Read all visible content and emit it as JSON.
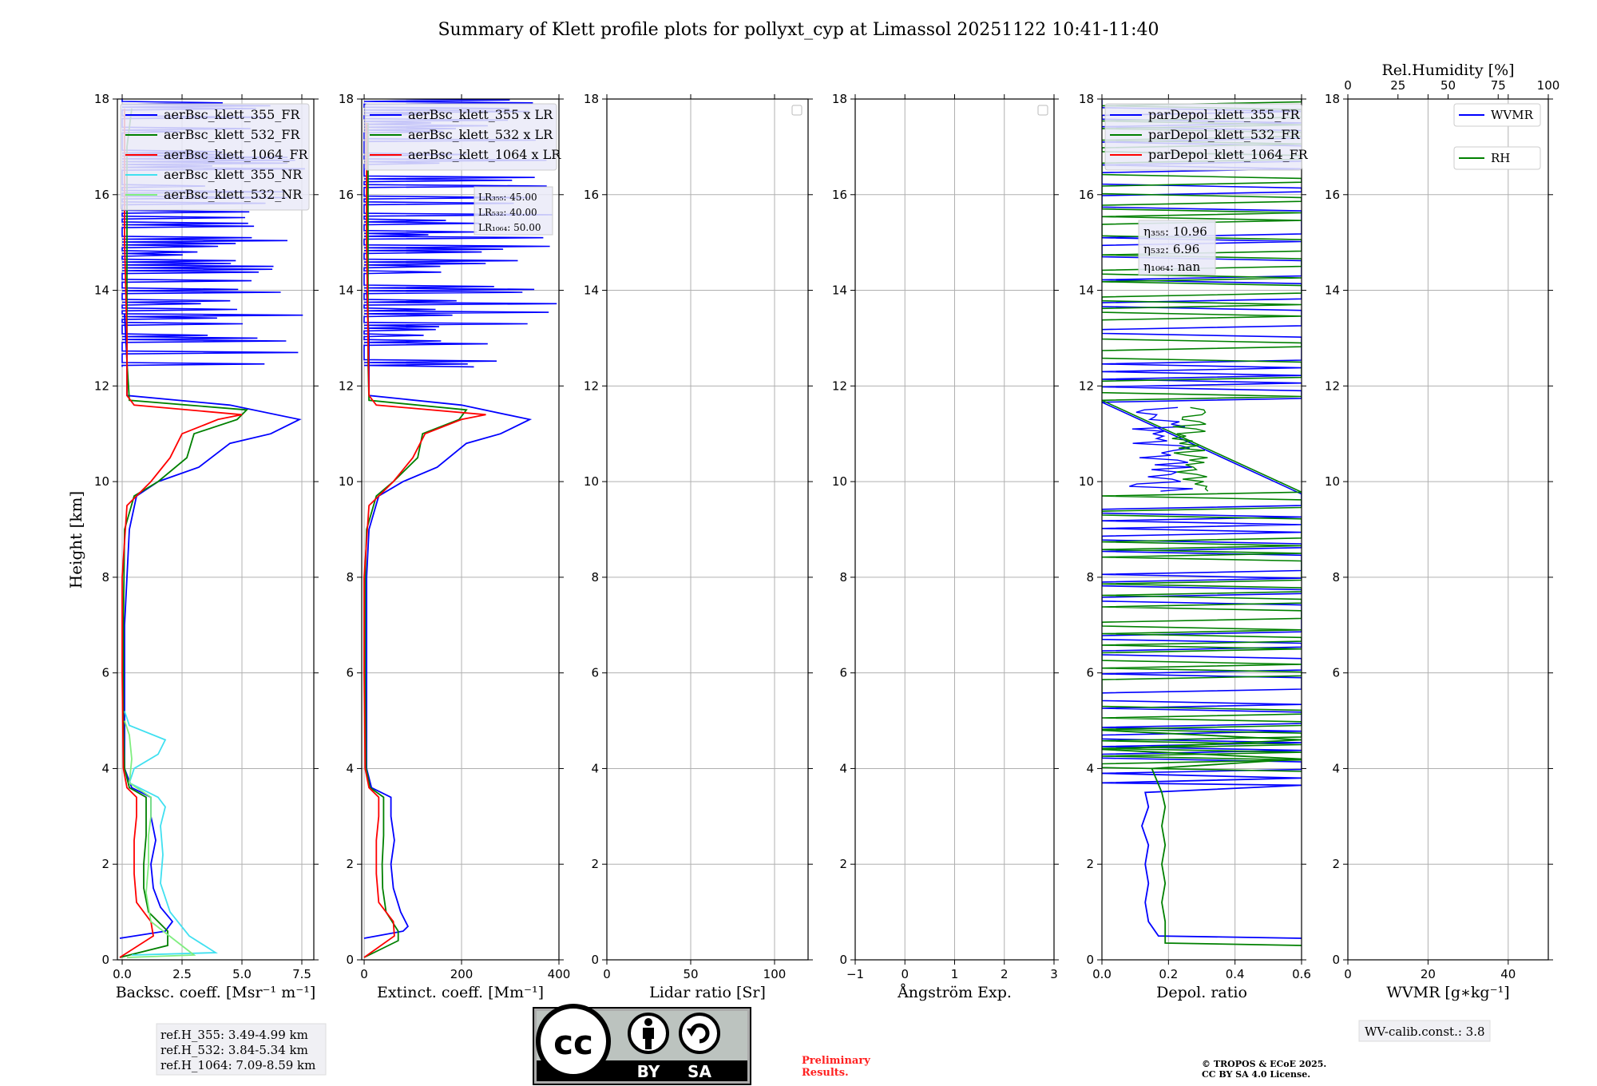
{
  "figure_title": "Summary of Klett profile plots for pollyxt_cyp at Limassol 20251122 10:41-11:40",
  "y_axis_label": "Height [km]",
  "y_ticks": [
    "0",
    "2",
    "4",
    "6",
    "8",
    "10",
    "12",
    "14",
    "16",
    "18"
  ],
  "colors": {
    "blue": "#0000ff",
    "green": "#008000",
    "red": "#ff0000",
    "cyan": "#40e0f0",
    "lightgreen": "#80ee80",
    "grid": "#b0b0b0",
    "legend_bg": "#eaeaf8"
  },
  "ref_heights": [
    "ref.H_355: 3.49-4.99 km",
    "ref.H_532: 3.84-5.34 km",
    "ref.H_1064: 7.09-8.59 km"
  ],
  "wv_calib": "WV-calib.const.: 3.8",
  "preliminary": [
    "Preliminary",
    "Results."
  ],
  "copyright": [
    "© TROPOS & ECoE 2025.",
    "CC BY SA 4.0 License."
  ],
  "license_badge": {
    "by": "BY",
    "sa": "SA",
    "cc": "cc"
  },
  "chart_data": [
    {
      "type": "line",
      "panel": "backscatter",
      "xlabel": "Backsc. coeff. [Msr⁻¹ m⁻¹]",
      "xlim": [
        -0.2,
        8.0
      ],
      "ylim": [
        0,
        18
      ],
      "x_ticks": [
        "0.0",
        "2.5",
        "5.0",
        "7.5"
      ],
      "x_tick_values": [
        0,
        2.5,
        5.0,
        7.5
      ],
      "legend": [
        "aerBsc_klett_355_FR",
        "aerBsc_klett_532_FR",
        "aerBsc_klett_1064_FR",
        "aerBsc_klett_355_NR",
        "aerBsc_klett_532_NR"
      ],
      "legend_colors": [
        "#0000ff",
        "#008000",
        "#ff0000",
        "#40e0f0",
        "#80ee80"
      ],
      "series": [
        {
          "name": "aerBsc_klett_355_FR",
          "color": "#0000ff",
          "points": [
            [
              -0.1,
              0.45
            ],
            [
              1.8,
              0.6
            ],
            [
              2.1,
              0.8
            ],
            [
              1.6,
              1.1
            ],
            [
              1.3,
              1.5
            ],
            [
              1.2,
              2.0
            ],
            [
              1.4,
              2.5
            ],
            [
              1.2,
              3.0
            ],
            [
              1.2,
              3.4
            ],
            [
              0.4,
              3.6
            ],
            [
              0.1,
              4.0
            ],
            [
              0.1,
              5.0
            ],
            [
              0.1,
              6.0
            ],
            [
              0.1,
              7.0
            ],
            [
              0.2,
              8.0
            ],
            [
              0.3,
              9.0
            ],
            [
              0.6,
              9.7
            ],
            [
              1.5,
              10.0
            ],
            [
              3.2,
              10.3
            ],
            [
              4.5,
              10.8
            ],
            [
              6.2,
              11.0
            ],
            [
              7.4,
              11.3
            ],
            [
              4.5,
              11.6
            ],
            [
              0.2,
              11.8
            ],
            [
              0.2,
              12.5
            ],
            [
              0.1,
              13.5
            ]
          ]
        },
        {
          "name": "aerBsc_klett_532_FR",
          "color": "#008000",
          "points": [
            [
              -0.1,
              0.05
            ],
            [
              1.9,
              0.3
            ],
            [
              1.9,
              0.6
            ],
            [
              1.1,
              1.0
            ],
            [
              0.9,
              1.5
            ],
            [
              0.9,
              2.0
            ],
            [
              1.0,
              2.6
            ],
            [
              1.0,
              3.0
            ],
            [
              1.0,
              3.4
            ],
            [
              0.3,
              3.6
            ],
            [
              0.1,
              4.0
            ],
            [
              0.05,
              5.0
            ],
            [
              0.05,
              7.0
            ],
            [
              0.1,
              9.0
            ],
            [
              0.5,
              9.7
            ],
            [
              1.5,
              10.0
            ],
            [
              2.7,
              10.5
            ],
            [
              3.0,
              11.0
            ],
            [
              4.8,
              11.3
            ],
            [
              5.2,
              11.5
            ],
            [
              0.3,
              11.7
            ],
            [
              0.2,
              12.5
            ],
            [
              0.2,
              14.0
            ],
            [
              0.2,
              16.0
            ],
            [
              0.2,
              17.0
            ],
            [
              0.4,
              17.8
            ]
          ]
        },
        {
          "name": "aerBsc_klett_1064_FR",
          "color": "#ff0000",
          "points": [
            [
              -0.1,
              0.05
            ],
            [
              1.3,
              0.5
            ],
            [
              1.2,
              0.8
            ],
            [
              0.6,
              1.2
            ],
            [
              0.5,
              1.8
            ],
            [
              0.5,
              2.5
            ],
            [
              0.6,
              3.0
            ],
            [
              0.6,
              3.4
            ],
            [
              0.2,
              3.6
            ],
            [
              0.05,
              4.0
            ],
            [
              0.0,
              6.0
            ],
            [
              0.0,
              8.0
            ],
            [
              0.2,
              9.5
            ],
            [
              1.2,
              10.0
            ],
            [
              2.0,
              10.5
            ],
            [
              2.5,
              11.0
            ],
            [
              4.0,
              11.3
            ],
            [
              5.0,
              11.4
            ],
            [
              0.5,
              11.6
            ],
            [
              0.2,
              11.8
            ],
            [
              0.2,
              13.0
            ],
            [
              0.1,
              15.0
            ],
            [
              0.1,
              17.0
            ],
            [
              0.1,
              17.8
            ]
          ]
        },
        {
          "name": "aerBsc_klett_355_NR",
          "color": "#40e0f0",
          "points": [
            [
              0.4,
              0.1
            ],
            [
              3.9,
              0.15
            ],
            [
              2.8,
              0.5
            ],
            [
              2.0,
              1.0
            ],
            [
              1.6,
              1.6
            ],
            [
              1.7,
              2.2
            ],
            [
              1.6,
              2.8
            ],
            [
              1.8,
              3.2
            ],
            [
              1.5,
              3.4
            ],
            [
              0.3,
              3.7
            ],
            [
              0.5,
              4.0
            ],
            [
              1.5,
              4.3
            ],
            [
              1.8,
              4.6
            ],
            [
              0.3,
              4.9
            ],
            [
              0.1,
              5.2
            ]
          ]
        },
        {
          "name": "aerBsc_klett_532_NR",
          "color": "#80ee80",
          "points": [
            [
              0.2,
              0.05
            ],
            [
              3.0,
              0.1
            ],
            [
              1.2,
              0.8
            ],
            [
              1.0,
              1.4
            ],
            [
              1.1,
              2.0
            ],
            [
              1.1,
              2.6
            ],
            [
              1.2,
              3.0
            ],
            [
              1.2,
              3.4
            ],
            [
              0.3,
              3.7
            ],
            [
              0.4,
              4.2
            ],
            [
              0.3,
              4.7
            ],
            [
              0.1,
              5.0
            ]
          ]
        }
      ]
    },
    {
      "type": "line",
      "panel": "extinction",
      "xlabel": "Extinct. coeff. [Mm⁻¹]",
      "xlim": [
        -5,
        400
      ],
      "ylim": [
        0,
        18
      ],
      "x_ticks": [
        "0",
        "200",
        "400"
      ],
      "x_tick_values": [
        0,
        200,
        400
      ],
      "legend": [
        "aerBsc_klett_355 x LR",
        "aerBsc_klett_532 x LR",
        "aerBsc_klett_1064 x LR"
      ],
      "legend_colors": [
        "#0000ff",
        "#008000",
        "#ff0000"
      ],
      "lr_box": [
        "LR₃₅₅: 45.00",
        "LR₅₃₂: 40.00",
        "LR₁₀₆₄: 50.00"
      ],
      "series": [
        {
          "name": "aerBsc_klett_355 x LR",
          "color": "#0000ff",
          "points": [
            [
              0,
              0.45
            ],
            [
              80,
              0.6
            ],
            [
              90,
              0.7
            ],
            [
              75,
              1.0
            ],
            [
              60,
              1.5
            ],
            [
              55,
              2.0
            ],
            [
              62,
              2.5
            ],
            [
              55,
              3.0
            ],
            [
              55,
              3.4
            ],
            [
              15,
              3.6
            ],
            [
              5,
              4.0
            ],
            [
              5,
              6.0
            ],
            [
              5,
              8.0
            ],
            [
              10,
              9.0
            ],
            [
              30,
              9.7
            ],
            [
              80,
              10.0
            ],
            [
              150,
              10.3
            ],
            [
              210,
              10.8
            ],
            [
              280,
              11.0
            ],
            [
              340,
              11.3
            ],
            [
              200,
              11.6
            ],
            [
              10,
              11.8
            ],
            [
              10,
              13.0
            ],
            [
              5,
              14.0
            ]
          ]
        },
        {
          "name": "aerBsc_klett_532 x LR",
          "color": "#008000",
          "points": [
            [
              0,
              0.05
            ],
            [
              70,
              0.4
            ],
            [
              70,
              0.6
            ],
            [
              45,
              1.0
            ],
            [
              38,
              1.5
            ],
            [
              37,
              2.0
            ],
            [
              40,
              2.6
            ],
            [
              40,
              3.0
            ],
            [
              40,
              3.4
            ],
            [
              12,
              3.6
            ],
            [
              4,
              4.0
            ],
            [
              2,
              6.0
            ],
            [
              2,
              8.0
            ],
            [
              5,
              9.0
            ],
            [
              25,
              9.7
            ],
            [
              60,
              10.0
            ],
            [
              110,
              10.5
            ],
            [
              120,
              11.0
            ],
            [
              195,
              11.3
            ],
            [
              210,
              11.5
            ],
            [
              10,
              11.7
            ],
            [
              8,
              12.5
            ],
            [
              8,
              14.0
            ],
            [
              8,
              16.0
            ],
            [
              8,
              17.5
            ]
          ]
        },
        {
          "name": "aerBsc_klett_1064 x LR",
          "color": "#ff0000",
          "points": [
            [
              0,
              0.05
            ],
            [
              62,
              0.5
            ],
            [
              60,
              0.8
            ],
            [
              30,
              1.2
            ],
            [
              25,
              1.8
            ],
            [
              25,
              2.5
            ],
            [
              30,
              3.0
            ],
            [
              30,
              3.4
            ],
            [
              10,
              3.6
            ],
            [
              2,
              4.0
            ],
            [
              0,
              6.0
            ],
            [
              0,
              8.0
            ],
            [
              10,
              9.5
            ],
            [
              60,
              10.0
            ],
            [
              100,
              10.5
            ],
            [
              125,
              11.0
            ],
            [
              200,
              11.3
            ],
            [
              250,
              11.4
            ],
            [
              25,
              11.6
            ],
            [
              10,
              11.8
            ],
            [
              8,
              13.0
            ],
            [
              5,
              15.0
            ],
            [
              5,
              17.5
            ]
          ]
        }
      ]
    },
    {
      "type": "line",
      "panel": "lidar_ratio",
      "xlabel": "Lidar ratio [Sr]",
      "xlim": [
        0,
        120
      ],
      "ylim": [
        0,
        18
      ],
      "x_ticks": [
        "0",
        "50",
        "100"
      ],
      "x_tick_values": [
        0,
        50,
        100
      ],
      "series": []
    },
    {
      "type": "line",
      "panel": "angstrom",
      "xlabel": "Ångström Exp.",
      "xlim": [
        -1,
        3
      ],
      "ylim": [
        0,
        18
      ],
      "x_ticks": [
        "−1",
        "0",
        "1",
        "2",
        "3"
      ],
      "x_tick_values": [
        -1,
        0,
        1,
        2,
        3
      ],
      "series": []
    },
    {
      "type": "line",
      "panel": "depolarization",
      "xlabel": "Depol. ratio",
      "xlim": [
        0,
        0.6
      ],
      "ylim": [
        0,
        18
      ],
      "x_ticks": [
        "0.0",
        "0.2",
        "0.4",
        "0.6"
      ],
      "x_tick_values": [
        0,
        0.2,
        0.4,
        0.6
      ],
      "legend": [
        "parDepol_klett_355_FR",
        "parDepol_klett_532_FR",
        "parDepol_klett_1064_FR"
      ],
      "legend_colors": [
        "#0000ff",
        "#008000",
        "#ff0000"
      ],
      "eta_box": [
        "η₃₅₅: 10.96",
        "η₅₃₂: 6.96",
        "η₁₀₆₄: nan"
      ],
      "series": [
        {
          "name": "parDepol_klett_355_FR",
          "color": "#0000ff",
          "points": [
            [
              0.6,
              0.45
            ],
            [
              0.17,
              0.5
            ],
            [
              0.14,
              0.8
            ],
            [
              0.13,
              1.2
            ],
            [
              0.14,
              1.6
            ],
            [
              0.13,
              2.0
            ],
            [
              0.14,
              2.4
            ],
            [
              0.12,
              2.8
            ],
            [
              0.14,
              3.2
            ],
            [
              0.13,
              3.5
            ],
            [
              0.6,
              3.65
            ],
            [
              0.0,
              3.7
            ],
            [
              0.6,
              3.8
            ],
            [
              0.0,
              3.9
            ]
          ]
        },
        {
          "name": "parDepol_klett_532_FR",
          "color": "#008000",
          "points": [
            [
              0.6,
              0.3
            ],
            [
              0.19,
              0.35
            ],
            [
              0.19,
              0.8
            ],
            [
              0.18,
              1.2
            ],
            [
              0.19,
              1.6
            ],
            [
              0.18,
              2.0
            ],
            [
              0.19,
              2.4
            ],
            [
              0.18,
              2.8
            ],
            [
              0.19,
              3.2
            ],
            [
              0.18,
              3.5
            ],
            [
              0.15,
              4.0
            ],
            [
              0.6,
              4.2
            ],
            [
              0.0,
              4.4
            ],
            [
              0.6,
              4.6
            ],
            [
              0.0,
              4.8
            ]
          ]
        }
      ]
    },
    {
      "type": "line",
      "panel": "wvmr",
      "xlabel": "WVMR [g∗kg⁻¹]",
      "top_label": "Rel.Humidity [%]",
      "xlim": [
        0,
        50
      ],
      "ylim": [
        0,
        18
      ],
      "x_ticks": [
        "0",
        "20",
        "40"
      ],
      "x_tick_values": [
        0,
        20,
        40
      ],
      "top_ticks": [
        "0",
        "25",
        "50",
        "75",
        "100"
      ],
      "top_tick_values": [
        0,
        25,
        50,
        75,
        100
      ],
      "legend": [
        "WVMR",
        "RH"
      ],
      "legend_colors": [
        "#0000ff",
        "#008000"
      ],
      "series": []
    }
  ]
}
